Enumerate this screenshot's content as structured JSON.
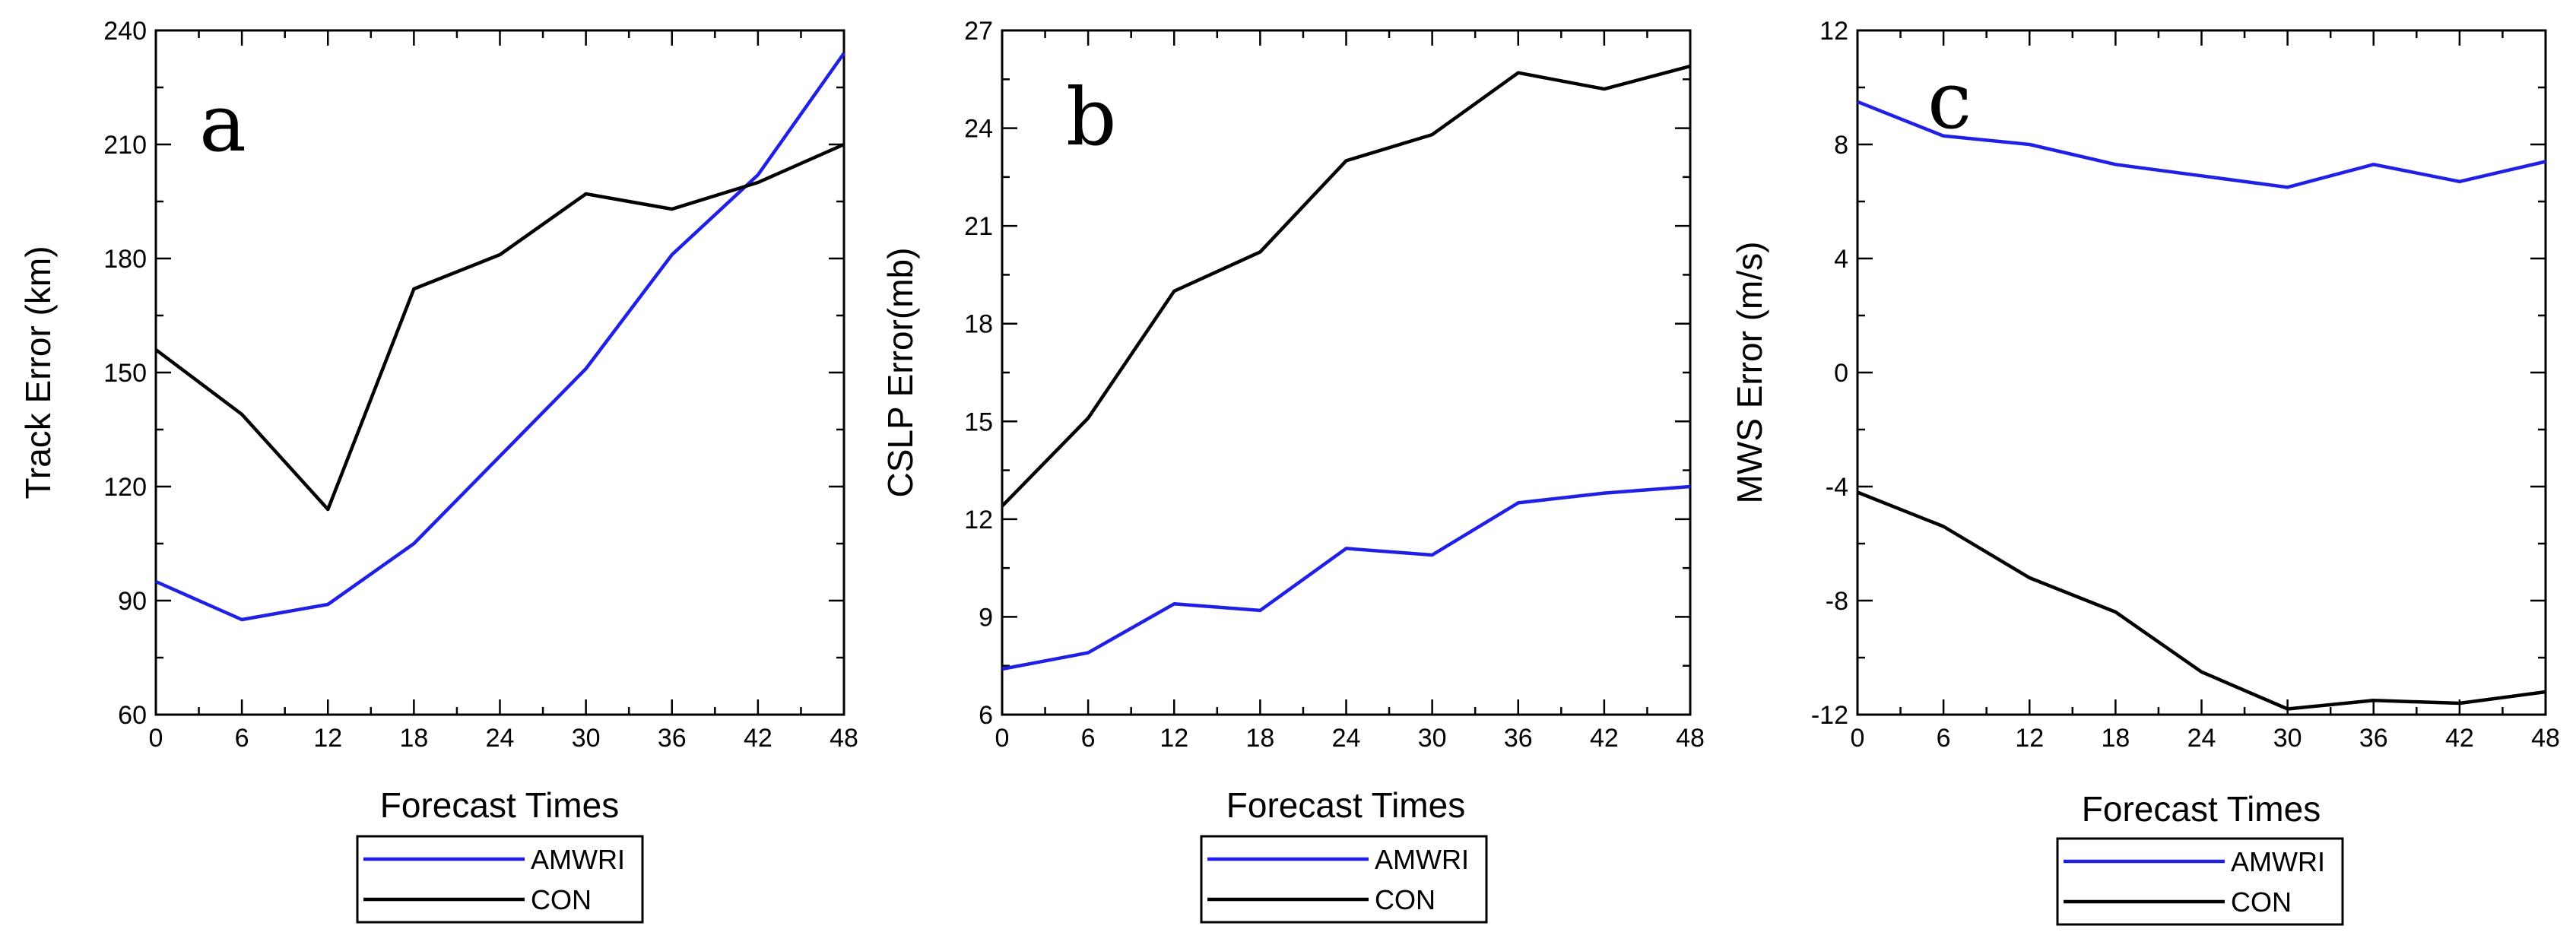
{
  "colors": {
    "AMWRI": "#1f1fe6",
    "CON": "#000000"
  },
  "chart_data": [
    {
      "type": "line",
      "panel_label": "a",
      "xlabel": "Forecast Times",
      "ylabel": "Track Error (km)",
      "x": [
        0,
        6,
        12,
        18,
        24,
        30,
        36,
        42,
        48
      ],
      "xticks": [
        "0",
        "6",
        "12",
        "18",
        "24",
        "30",
        "36",
        "42",
        "48"
      ],
      "xlim": [
        0,
        48
      ],
      "ylim": [
        60,
        240
      ],
      "yticks": [
        "60",
        "90",
        "120",
        "150",
        "180",
        "210",
        "240"
      ],
      "ytick_values": [
        60,
        90,
        120,
        150,
        180,
        210,
        240
      ],
      "series": [
        {
          "name": "AMWRI",
          "color": "#1f1fe6",
          "values": [
            95,
            85,
            89,
            105,
            128,
            151,
            181,
            202,
            234
          ]
        },
        {
          "name": "CON",
          "color": "#000000",
          "values": [
            156,
            139,
            114,
            172,
            181,
            197,
            193,
            200,
            210
          ]
        }
      ],
      "legend": [
        "AMWRI",
        "CON"
      ]
    },
    {
      "type": "line",
      "panel_label": "b",
      "xlabel": "Forecast Times",
      "ylabel": "CSLP Error(mb)",
      "x": [
        0,
        6,
        12,
        18,
        24,
        30,
        36,
        42,
        48
      ],
      "xticks": [
        "0",
        "6",
        "12",
        "18",
        "24",
        "30",
        "36",
        "42",
        "48"
      ],
      "xlim": [
        0,
        48
      ],
      "ylim": [
        6,
        27
      ],
      "yticks": [
        "6",
        "9",
        "12",
        "15",
        "18",
        "21",
        "24",
        "27"
      ],
      "ytick_values": [
        6,
        9,
        12,
        15,
        18,
        21,
        24,
        27
      ],
      "series": [
        {
          "name": "AMWRI",
          "color": "#1f1fe6",
          "values": [
            7.4,
            7.9,
            9.4,
            9.2,
            11.1,
            10.9,
            12.5,
            12.8,
            13.0
          ]
        },
        {
          "name": "CON",
          "color": "#000000",
          "values": [
            12.4,
            15.1,
            19.0,
            20.2,
            23.0,
            23.8,
            25.7,
            25.2,
            25.9
          ]
        }
      ],
      "legend": [
        "AMWRI",
        "CON"
      ]
    },
    {
      "type": "line",
      "panel_label": "c",
      "xlabel": "Forecast Times",
      "ylabel": "MWS Error (m/s)",
      "x": [
        0,
        6,
        12,
        18,
        24,
        30,
        36,
        42,
        48
      ],
      "xticks": [
        "0",
        "6",
        "12",
        "18",
        "24",
        "30",
        "36",
        "42",
        "48"
      ],
      "xlim": [
        0,
        48
      ],
      "ylim": [
        -12,
        12
      ],
      "yticks": [
        "-12",
        "-8",
        "-4",
        "0",
        "4",
        "8",
        "12"
      ],
      "ytick_values": [
        -12,
        -8,
        -4,
        0,
        4,
        8,
        12
      ],
      "series": [
        {
          "name": "AMWRI",
          "color": "#1f1fe6",
          "values": [
            9.5,
            8.3,
            8.0,
            7.3,
            6.9,
            6.5,
            7.3,
            6.7,
            7.4
          ]
        },
        {
          "name": "CON",
          "color": "#000000",
          "values": [
            -4.2,
            -5.4,
            -7.2,
            -8.4,
            -10.5,
            -11.8,
            -11.5,
            -11.6,
            -11.2
          ]
        }
      ],
      "legend": [
        "AMWRI",
        "CON"
      ]
    }
  ]
}
